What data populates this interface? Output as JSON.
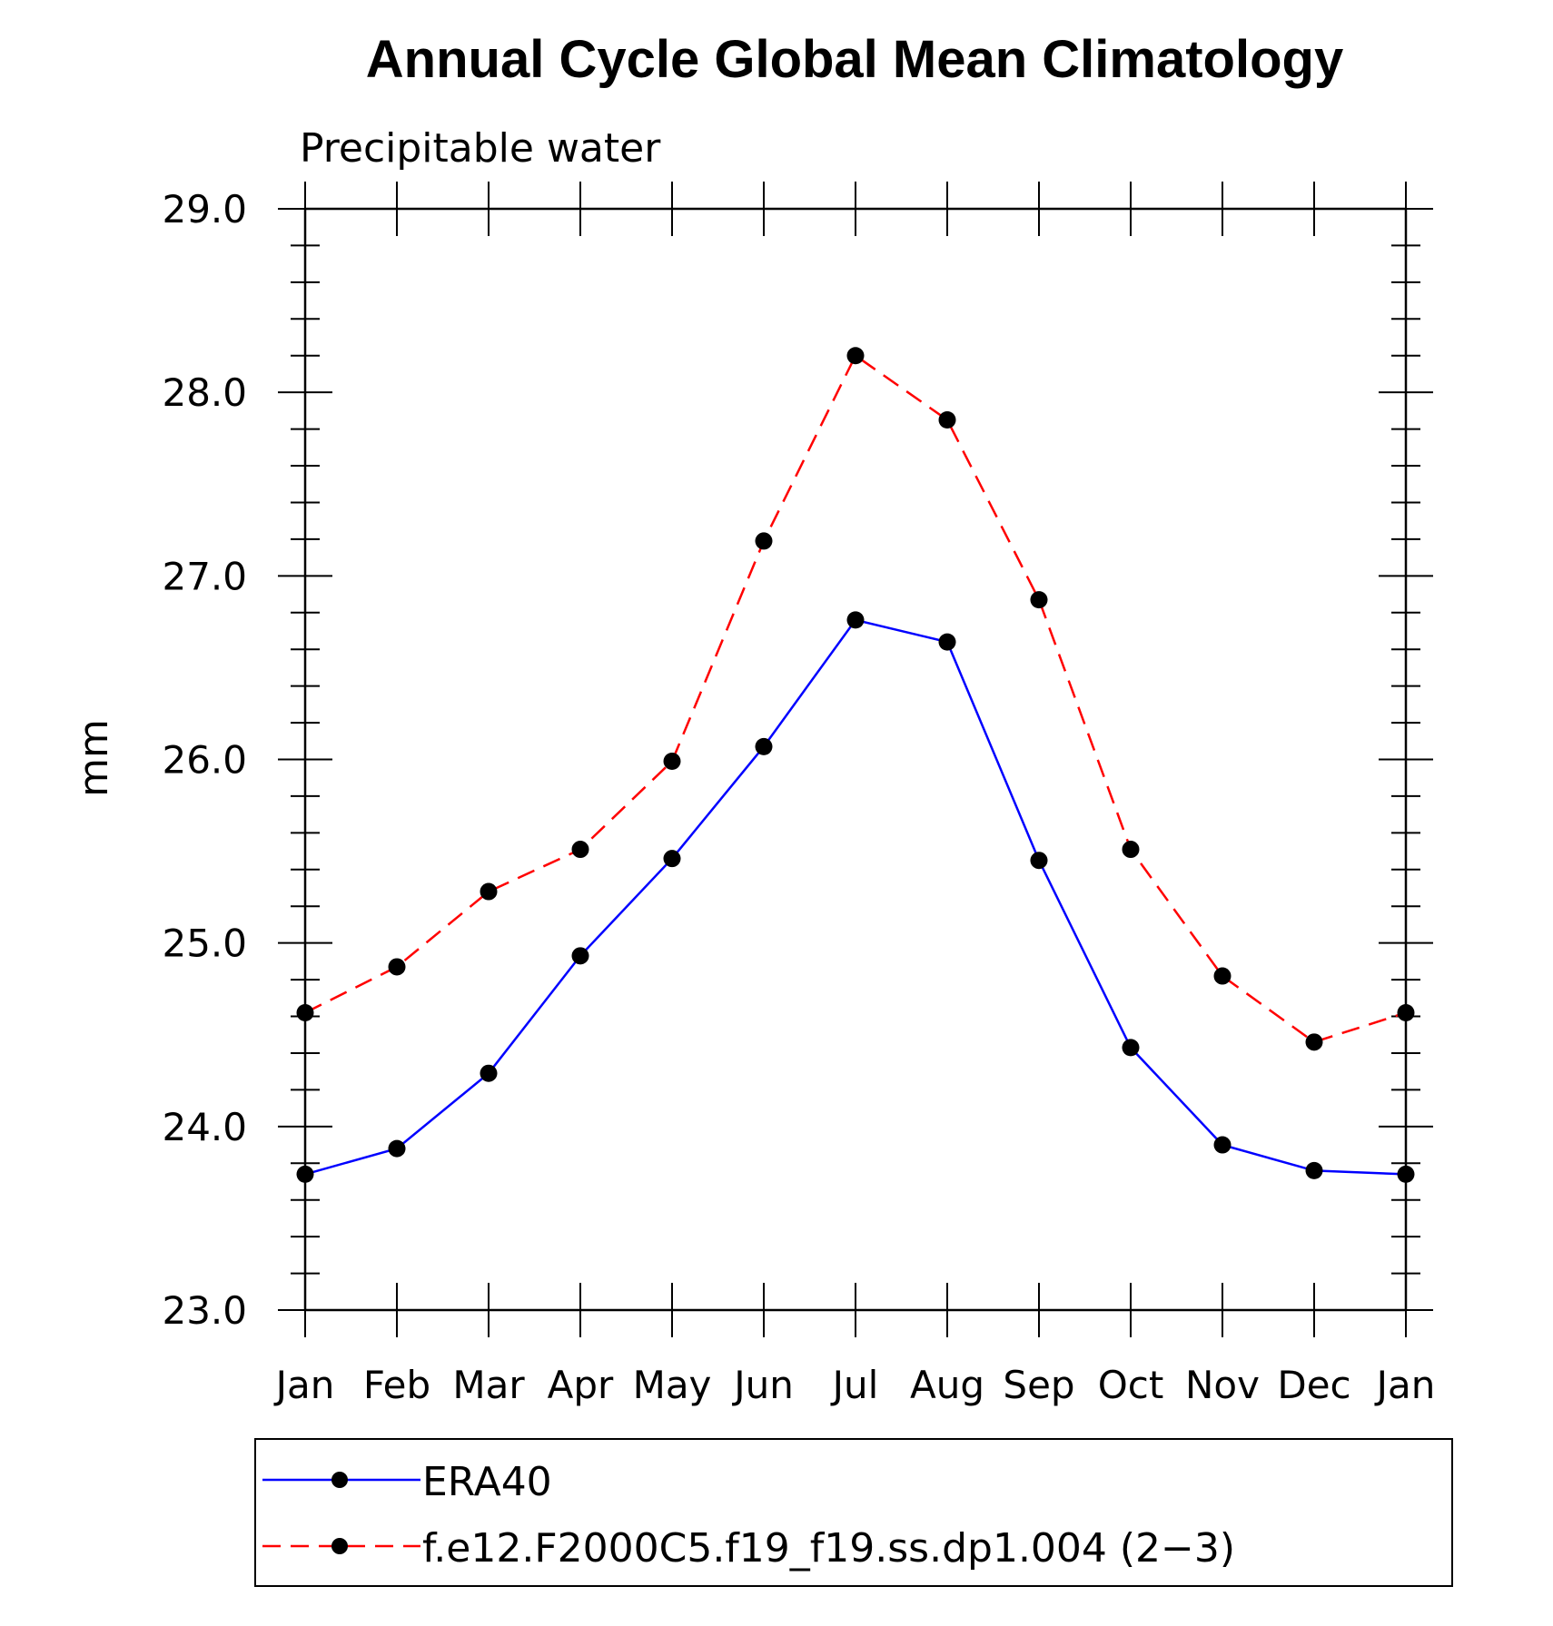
{
  "chart_data": {
    "type": "line",
    "title": "Annual Cycle Global Mean Climatology",
    "subtitle": "Precipitable water",
    "xlabel": "",
    "ylabel": "mm",
    "categories": [
      "Jan",
      "Feb",
      "Mar",
      "Apr",
      "May",
      "Jun",
      "Jul",
      "Aug",
      "Sep",
      "Oct",
      "Nov",
      "Dec",
      "Jan"
    ],
    "ylim": [
      23.0,
      29.0
    ],
    "yticks": [
      "23.0",
      "24.0",
      "25.0",
      "26.0",
      "27.0",
      "28.0",
      "29.0"
    ],
    "grid": false,
    "legend_position": "bottom",
    "series": [
      {
        "name": "ERA40",
        "color": "#0000ff",
        "dash": "solid",
        "values": [
          23.74,
          23.88,
          24.29,
          24.93,
          25.46,
          26.07,
          26.76,
          26.64,
          25.45,
          24.43,
          23.9,
          23.76,
          23.74
        ]
      },
      {
        "name": "f.e12.F2000C5.f19_f19.ss.dp1.004 (2−3)",
        "color": "#ff0000",
        "dash": "dashed",
        "values": [
          24.62,
          24.87,
          25.28,
          25.51,
          25.99,
          27.19,
          28.2,
          27.85,
          26.87,
          25.51,
          24.82,
          24.46,
          24.62
        ]
      }
    ]
  }
}
